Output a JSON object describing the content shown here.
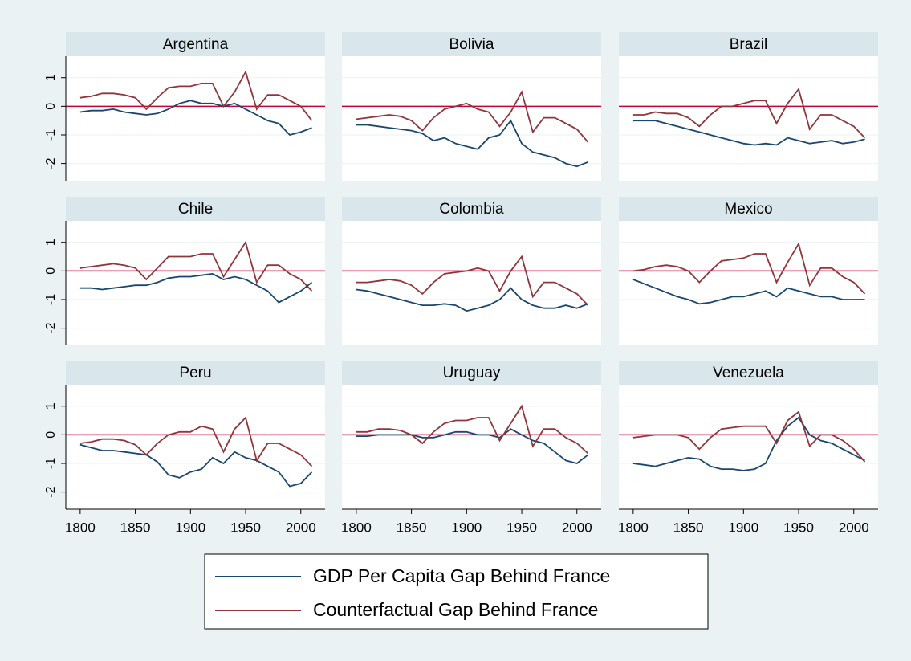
{
  "chart_data": {
    "type": "line",
    "x": [
      1800,
      1810,
      1820,
      1830,
      1840,
      1850,
      1860,
      1870,
      1880,
      1890,
      1900,
      1910,
      1920,
      1930,
      1940,
      1950,
      1960,
      1970,
      1980,
      1990,
      2000,
      2010
    ],
    "xlim": [
      1787,
      2022
    ],
    "xticks": [
      1800,
      1850,
      1900,
      1950,
      2000
    ],
    "ylim": [
      -2.6,
      1.75
    ],
    "yticks": [
      -2,
      -1,
      0,
      1
    ],
    "grid": true,
    "yline": 0,
    "yline_color": "#c10534",
    "series": [
      {
        "name": "GDP Per Capita Gap Behind France",
        "color": "#1a476f"
      },
      {
        "name": "Counterfactual Gap Behind France",
        "color": "#90353b"
      }
    ],
    "panels": [
      {
        "title": "Argentina",
        "series": [
          {
            "values": [
              -0.2,
              -0.15,
              -0.15,
              -0.1,
              -0.2,
              -0.25,
              -0.3,
              -0.25,
              -0.1,
              0.1,
              0.2,
              0.1,
              0.1,
              0.0,
              0.1,
              -0.1,
              -0.3,
              -0.5,
              -0.6,
              -1.0,
              -0.9,
              -0.75
            ]
          },
          {
            "values": [
              0.3,
              0.35,
              0.45,
              0.45,
              0.4,
              0.3,
              -0.1,
              0.3,
              0.65,
              0.7,
              0.7,
              0.8,
              0.8,
              0.0,
              0.5,
              1.2,
              -0.1,
              0.4,
              0.4,
              0.2,
              0.0,
              -0.5
            ]
          }
        ]
      },
      {
        "title": "Bolivia",
        "series": [
          {
            "values": [
              -0.65,
              -0.65,
              -0.7,
              -0.75,
              -0.8,
              -0.85,
              -0.95,
              -1.2,
              -1.1,
              -1.3,
              -1.4,
              -1.5,
              -1.1,
              -1.0,
              -0.5,
              -1.3,
              -1.6,
              -1.7,
              -1.8,
              -2.0,
              -2.1,
              -1.95
            ]
          },
          {
            "values": [
              -0.45,
              -0.4,
              -0.35,
              -0.3,
              -0.35,
              -0.5,
              -0.85,
              -0.4,
              -0.1,
              0.0,
              0.1,
              -0.1,
              -0.2,
              -0.7,
              -0.2,
              0.5,
              -0.9,
              -0.4,
              -0.4,
              -0.6,
              -0.8,
              -1.25
            ]
          }
        ]
      },
      {
        "title": "Brazil",
        "series": [
          {
            "values": [
              -0.5,
              -0.5,
              -0.5,
              -0.6,
              -0.7,
              -0.8,
              -0.9,
              -1.0,
              -1.1,
              -1.2,
              -1.3,
              -1.35,
              -1.3,
              -1.35,
              -1.1,
              -1.2,
              -1.3,
              -1.25,
              -1.2,
              -1.3,
              -1.25,
              -1.15
            ]
          },
          {
            "values": [
              -0.3,
              -0.3,
              -0.2,
              -0.25,
              -0.25,
              -0.4,
              -0.7,
              -0.3,
              0.0,
              0.0,
              0.1,
              0.2,
              0.2,
              -0.6,
              0.1,
              0.6,
              -0.8,
              -0.3,
              -0.3,
              -0.5,
              -0.7,
              -1.1
            ]
          }
        ]
      },
      {
        "title": "Chile",
        "series": [
          {
            "values": [
              -0.6,
              -0.6,
              -0.65,
              -0.6,
              -0.55,
              -0.5,
              -0.5,
              -0.4,
              -0.25,
              -0.2,
              -0.2,
              -0.15,
              -0.1,
              -0.3,
              -0.2,
              -0.3,
              -0.5,
              -0.7,
              -1.1,
              -0.9,
              -0.7,
              -0.4
            ]
          },
          {
            "values": [
              0.1,
              0.15,
              0.2,
              0.25,
              0.2,
              0.1,
              -0.3,
              0.1,
              0.5,
              0.5,
              0.5,
              0.6,
              0.6,
              -0.2,
              0.4,
              1.0,
              -0.4,
              0.2,
              0.2,
              -0.1,
              -0.3,
              -0.7
            ]
          }
        ]
      },
      {
        "title": "Colombia",
        "series": [
          {
            "values": [
              -0.65,
              -0.7,
              -0.8,
              -0.9,
              -1.0,
              -1.1,
              -1.2,
              -1.2,
              -1.15,
              -1.2,
              -1.4,
              -1.3,
              -1.2,
              -1.0,
              -0.6,
              -1.0,
              -1.2,
              -1.3,
              -1.3,
              -1.2,
              -1.3,
              -1.15
            ]
          },
          {
            "values": [
              -0.4,
              -0.4,
              -0.35,
              -0.3,
              -0.35,
              -0.5,
              -0.8,
              -0.4,
              -0.1,
              -0.05,
              0.0,
              0.1,
              0.0,
              -0.7,
              0.0,
              0.5,
              -0.9,
              -0.4,
              -0.4,
              -0.6,
              -0.8,
              -1.2
            ]
          }
        ]
      },
      {
        "title": "Mexico",
        "series": [
          {
            "values": [
              -0.3,
              -0.45,
              -0.6,
              -0.75,
              -0.9,
              -1.0,
              -1.15,
              -1.1,
              -1.0,
              -0.9,
              -0.9,
              -0.8,
              -0.7,
              -0.9,
              -0.6,
              -0.7,
              -0.8,
              -0.9,
              -0.9,
              -1.0,
              -1.0,
              -1.0
            ]
          },
          {
            "values": [
              0.0,
              0.05,
              0.15,
              0.2,
              0.15,
              0.0,
              -0.4,
              0.0,
              0.35,
              0.4,
              0.45,
              0.6,
              0.6,
              -0.4,
              0.3,
              0.95,
              -0.5,
              0.1,
              0.1,
              -0.2,
              -0.4,
              -0.8
            ]
          }
        ]
      },
      {
        "title": "Peru",
        "series": [
          {
            "values": [
              -0.35,
              -0.45,
              -0.55,
              -0.55,
              -0.6,
              -0.65,
              -0.7,
              -0.95,
              -1.4,
              -1.5,
              -1.3,
              -1.2,
              -0.8,
              -1.0,
              -0.6,
              -0.8,
              -0.9,
              -1.1,
              -1.3,
              -1.8,
              -1.7,
              -1.3
            ]
          },
          {
            "values": [
              -0.3,
              -0.25,
              -0.15,
              -0.15,
              -0.2,
              -0.35,
              -0.7,
              -0.3,
              0.0,
              0.1,
              0.1,
              0.3,
              0.2,
              -0.6,
              0.2,
              0.6,
              -0.9,
              -0.3,
              -0.3,
              -0.5,
              -0.7,
              -1.1
            ]
          }
        ]
      },
      {
        "title": "Uruguay",
        "series": [
          {
            "values": [
              -0.05,
              -0.05,
              0.0,
              0.0,
              0.0,
              0.0,
              -0.1,
              -0.1,
              0.0,
              0.1,
              0.1,
              0.0,
              0.0,
              -0.1,
              0.2,
              0.0,
              -0.2,
              -0.3,
              -0.6,
              -0.9,
              -1.0,
              -0.7
            ]
          },
          {
            "values": [
              0.1,
              0.1,
              0.2,
              0.2,
              0.15,
              0.0,
              -0.3,
              0.1,
              0.4,
              0.5,
              0.5,
              0.6,
              0.6,
              -0.2,
              0.4,
              1.0,
              -0.4,
              0.2,
              0.2,
              -0.1,
              -0.3,
              -0.65
            ]
          }
        ]
      },
      {
        "title": "Venezuela",
        "series": [
          {
            "values": [
              -1.0,
              -1.05,
              -1.1,
              -1.0,
              -0.9,
              -0.8,
              -0.85,
              -1.1,
              -1.2,
              -1.2,
              -1.25,
              -1.2,
              -1.0,
              -0.2,
              0.3,
              0.6,
              0.0,
              -0.2,
              -0.3,
              -0.5,
              -0.7,
              -0.9
            ]
          },
          {
            "values": [
              -0.1,
              -0.05,
              0.0,
              0.0,
              0.0,
              -0.1,
              -0.5,
              -0.1,
              0.2,
              0.25,
              0.3,
              0.3,
              0.3,
              -0.3,
              0.5,
              0.8,
              -0.4,
              0.0,
              0.0,
              -0.2,
              -0.5,
              -0.95
            ]
          }
        ]
      }
    ]
  }
}
